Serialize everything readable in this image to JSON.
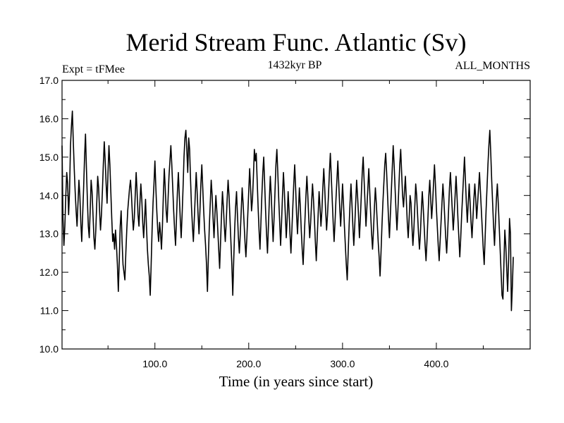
{
  "chart_data": {
    "type": "line",
    "title": "Merid Stream Func. Atlantic (Sv)",
    "subtitle_left": "Expt = tFMee",
    "subtitle_center": "1432kyr BP",
    "subtitle_right": "ALL_MONTHS",
    "xlabel": "Time (in years since start)",
    "ylabel": "",
    "xlim": [
      1,
      500
    ],
    "ylim": [
      10.0,
      17.0
    ],
    "x_ticks": [
      100,
      200,
      300,
      400
    ],
    "x_tick_labels": [
      "100.0",
      "200.0",
      "300.0",
      "400.0"
    ],
    "y_ticks": [
      10,
      11,
      12,
      13,
      14,
      15,
      16,
      17
    ],
    "y_tick_labels": [
      "10.0",
      "11.0",
      "12.0",
      "13.0",
      "14.0",
      "15.0",
      "16.0",
      "17.0"
    ],
    "grid": false,
    "series": [
      {
        "name": "Meridional stream function",
        "color": "#000000",
        "x_start": 1,
        "x_step": 1,
        "values": [
          15.3,
          13.4,
          12.7,
          13.2,
          14.0,
          14.6,
          14.3,
          13.5,
          14.1,
          15.3,
          15.8,
          16.2,
          15.4,
          14.7,
          14.1,
          13.6,
          13.2,
          13.8,
          14.4,
          14.0,
          13.3,
          12.8,
          13.5,
          14.2,
          15.0,
          15.6,
          14.7,
          13.9,
          13.2,
          12.9,
          13.6,
          14.4,
          14.1,
          13.5,
          12.9,
          12.6,
          13.1,
          13.8,
          14.5,
          14.2,
          13.6,
          13.1,
          13.5,
          14.1,
          14.8,
          15.4,
          14.9,
          14.3,
          13.8,
          14.6,
          15.3,
          14.8,
          14.1,
          13.4,
          12.8,
          13.0,
          12.6,
          13.1,
          12.7,
          12.2,
          11.5,
          12.3,
          13.2,
          13.6,
          12.8,
          12.2,
          12.0,
          11.8,
          12.5,
          13.1,
          13.6,
          13.9,
          14.2,
          14.4,
          14.0,
          13.5,
          13.1,
          13.4,
          14.0,
          14.6,
          14.1,
          13.5,
          13.2,
          13.8,
          14.3,
          13.9,
          13.3,
          12.9,
          13.4,
          13.9,
          13.2,
          12.6,
          12.2,
          11.9,
          11.4,
          12.2,
          13.1,
          13.8,
          14.3,
          14.9,
          14.2,
          13.6,
          13.1,
          12.8,
          13.3,
          13.0,
          12.6,
          13.2,
          14.0,
          14.7,
          14.2,
          13.6,
          13.3,
          13.9,
          14.5,
          14.9,
          15.3,
          14.8,
          14.2,
          13.6,
          13.1,
          12.7,
          13.4,
          14.1,
          14.6,
          14.0,
          13.4,
          12.9,
          13.5,
          14.2,
          15.0,
          15.5,
          15.7,
          15.2,
          14.6,
          15.5,
          15.2,
          14.4,
          13.7,
          13.2,
          12.8,
          13.4,
          14.0,
          14.6,
          14.1,
          13.5,
          13.0,
          13.6,
          14.3,
          14.8,
          14.2,
          13.6,
          13.1,
          12.7,
          12.2,
          11.5,
          12.4,
          13.2,
          13.8,
          14.4,
          14.0,
          13.4,
          12.9,
          13.5,
          14.0,
          13.6,
          13.1,
          12.6,
          12.1,
          12.8,
          13.5,
          14.1,
          13.7,
          13.2,
          12.8,
          13.3,
          13.9,
          14.4,
          14.0,
          13.4,
          12.8,
          12.2,
          11.4,
          12.3,
          13.1,
          13.7,
          14.1,
          13.5,
          12.9,
          12.5,
          13.0,
          13.6,
          14.2,
          13.8,
          13.3,
          12.8,
          12.4,
          12.9,
          13.5,
          14.1,
          14.7,
          14.2,
          13.6,
          13.9,
          14.5,
          15.2,
          14.9,
          15.1,
          14.4,
          13.7,
          13.1,
          12.6,
          13.3,
          14.0,
          14.6,
          15.0,
          14.3,
          13.6,
          13.0,
          12.5,
          13.2,
          13.9,
          14.5,
          14.0,
          13.4,
          12.8,
          13.4,
          14.1,
          14.8,
          15.2,
          14.6,
          13.9,
          13.3,
          12.7,
          13.3,
          14.0,
          14.6,
          14.1,
          13.5,
          12.9,
          13.4,
          14.1,
          13.6,
          13.0,
          12.5,
          13.1,
          13.7,
          14.3,
          14.8,
          14.2,
          13.5,
          13.0,
          13.6,
          14.2,
          13.7,
          13.1,
          12.6,
          12.2,
          12.8,
          13.4,
          14.0,
          14.5,
          14.0,
          13.4,
          12.9,
          13.3,
          13.8,
          14.3,
          13.9,
          13.4,
          12.8,
          12.3,
          12.9,
          13.5,
          14.1,
          13.7,
          13.2,
          13.6,
          14.2,
          14.7,
          14.2,
          13.6,
          13.1,
          13.5,
          14.0,
          14.6,
          15.1,
          14.5,
          13.9,
          13.3,
          12.8,
          13.3,
          13.9,
          14.4,
          14.9,
          14.3,
          13.7,
          13.2,
          13.7,
          14.3,
          13.8,
          13.2,
          12.7,
          12.2,
          11.8,
          12.5,
          13.2,
          13.8,
          14.3,
          13.8,
          13.2,
          12.7,
          13.2,
          13.8,
          14.4,
          14.0,
          13.5,
          12.9,
          13.4,
          14.0,
          14.6,
          15.0,
          14.4,
          13.8,
          13.2,
          13.7,
          14.2,
          14.7,
          14.1,
          13.5,
          13.0,
          12.6,
          13.1,
          13.7,
          14.2,
          13.8,
          13.3,
          12.8,
          12.4,
          11.9,
          12.5,
          13.2,
          13.8,
          14.3,
          14.8,
          15.1,
          14.6,
          14.0,
          13.4,
          12.9,
          13.5,
          14.1,
          14.7,
          15.3,
          14.8,
          14.2,
          13.6,
          13.1,
          13.6,
          14.2,
          14.8,
          15.2,
          14.6,
          14.0,
          13.7,
          14.1,
          14.5,
          13.9,
          13.3,
          12.9,
          13.4,
          14.0,
          13.8,
          13.2,
          12.7,
          13.1,
          13.7,
          14.3,
          14.0,
          13.5,
          13.0,
          12.6,
          13.0,
          13.6,
          14.1,
          13.7,
          13.2,
          12.7,
          12.3,
          12.8,
          13.4,
          14.0,
          14.4,
          13.9,
          13.4,
          13.8,
          14.3,
          14.8,
          14.3,
          13.7,
          13.2,
          12.7,
          12.3,
          12.8,
          13.3,
          13.8,
          14.3,
          13.9,
          13.4,
          12.9,
          12.5,
          13.0,
          13.6,
          14.2,
          14.6,
          14.1,
          13.6,
          13.1,
          13.5,
          14.0,
          14.5,
          14.0,
          13.4,
          12.9,
          12.4,
          12.9,
          13.5,
          14.0,
          14.5,
          15.0,
          14.4,
          13.8,
          13.3,
          13.8,
          14.3,
          13.8,
          13.3,
          12.9,
          13.4,
          13.9,
          14.3,
          13.9,
          13.4,
          13.8,
          14.2,
          14.6,
          14.1,
          13.6,
          13.1,
          12.6,
          12.2,
          12.9,
          13.6,
          14.2,
          14.8,
          15.3,
          15.7,
          15.1,
          14.4,
          13.8,
          13.2,
          12.7,
          13.3,
          13.9,
          14.3,
          13.8,
          13.2,
          12.6,
          12.0,
          11.4,
          11.3,
          12.2,
          13.1,
          12.7,
          12.1,
          11.5,
          12.3,
          13.4,
          13.0,
          11.0,
          11.6,
          12.4
        ]
      }
    ]
  }
}
